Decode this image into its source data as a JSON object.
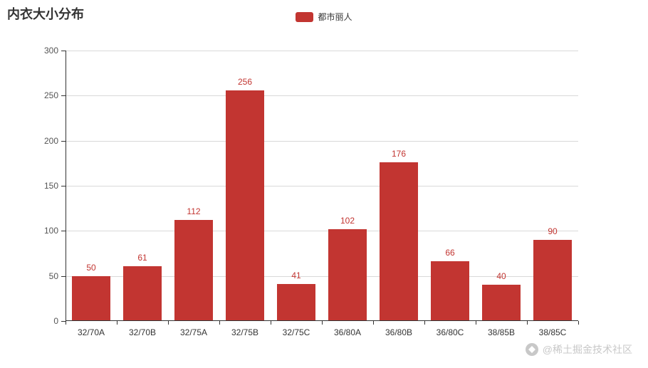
{
  "title": "内衣大小分布",
  "legend": {
    "items": [
      {
        "label": "都市丽人",
        "color": "#c23531"
      }
    ]
  },
  "chart_data": {
    "type": "bar",
    "title": "内衣大小分布",
    "categories": [
      "32/70A",
      "32/70B",
      "32/75A",
      "32/75B",
      "32/75C",
      "36/80A",
      "36/80B",
      "36/80C",
      "38/85B",
      "38/85C"
    ],
    "series": [
      {
        "name": "都市丽人",
        "color": "#c23531",
        "values": [
          50,
          61,
          112,
          256,
          41,
          102,
          176,
          66,
          40,
          90
        ]
      }
    ],
    "xlabel": "",
    "ylabel": "",
    "ylim": [
      0,
      300
    ],
    "y_ticks": [
      0,
      50,
      100,
      150,
      200,
      250,
      300
    ],
    "grid": true,
    "legend_position": "top",
    "value_labels": true
  },
  "watermark": {
    "text": "@稀土掘金技术社区"
  },
  "colors": {
    "bar": "#c23531",
    "axis": "#333333",
    "gridline": "#d9d9d9",
    "watermark": "#c8c8c8",
    "background": "#ffffff"
  }
}
